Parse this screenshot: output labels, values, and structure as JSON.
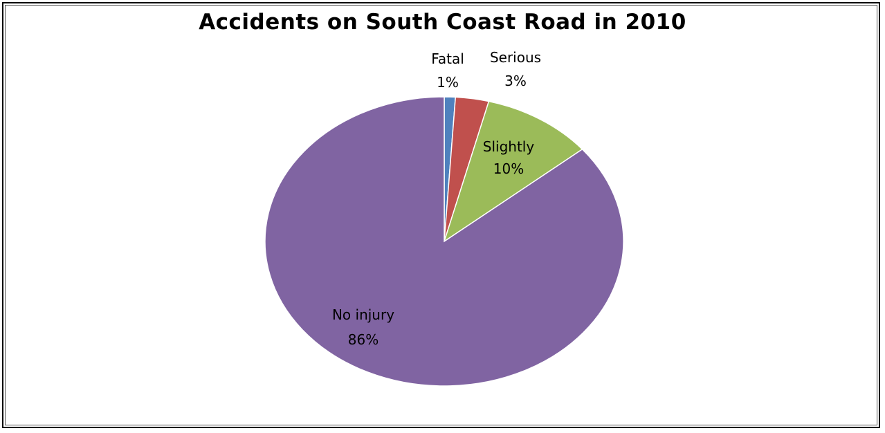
{
  "chart_data": {
    "type": "pie",
    "title": "Accidents on South Coast Road in 2010",
    "slices": [
      {
        "name": "Fatal",
        "label": "1%",
        "value": 1,
        "color": "#4f81bd"
      },
      {
        "name": "Serious",
        "label": "3%",
        "value": 3,
        "color": "#c0504d"
      },
      {
        "name": "Slightly",
        "label": "10%",
        "value": 10,
        "color": "#9bbb59"
      },
      {
        "name": "No injury",
        "label": "86%",
        "value": 86,
        "color": "#8064a2"
      }
    ]
  }
}
